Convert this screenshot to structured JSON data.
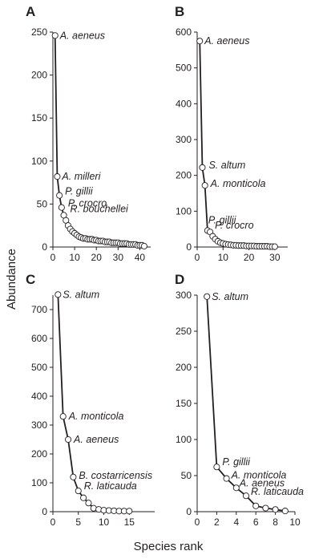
{
  "figure": {
    "ylabel": "Abundance",
    "xlabel": "Species rank"
  },
  "chart_data": [
    {
      "panel": "A",
      "type": "line",
      "xlim": [
        0,
        45
      ],
      "ylim": [
        0,
        250
      ],
      "xticks": [
        0,
        10,
        20,
        30,
        40
      ],
      "yticks": [
        0,
        50,
        100,
        150,
        200,
        250
      ],
      "x": [
        1,
        2,
        3,
        4,
        5,
        6,
        7,
        8,
        9,
        10,
        11,
        12,
        13,
        14,
        15,
        16,
        17,
        18,
        19,
        20,
        21,
        22,
        23,
        24,
        25,
        26,
        27,
        28,
        29,
        30,
        31,
        32,
        33,
        34,
        35,
        36,
        37,
        38,
        39,
        40,
        41,
        42
      ],
      "y": [
        246,
        82,
        60,
        46,
        37,
        31,
        25,
        21,
        18,
        16,
        14,
        12,
        11,
        10,
        10,
        9,
        9,
        9,
        8,
        8,
        7,
        7,
        7,
        6,
        6,
        6,
        5,
        5,
        5,
        5,
        4,
        4,
        4,
        4,
        3,
        3,
        3,
        3,
        2,
        2,
        2,
        1
      ],
      "annotations": [
        {
          "label": "A. aeneus",
          "rank": 1
        },
        {
          "label": "A. milleri",
          "rank": 2
        },
        {
          "label": "P. gillii",
          "rank": 3
        },
        {
          "label": "P. crocro",
          "rank": 4
        },
        {
          "label": "R. bouchellei",
          "rank": 5
        }
      ]
    },
    {
      "panel": "B",
      "type": "line",
      "xlim": [
        0,
        35
      ],
      "ylim": [
        0,
        600
      ],
      "xticks": [
        0,
        10,
        20,
        30
      ],
      "yticks": [
        0,
        100,
        200,
        300,
        400,
        500,
        600
      ],
      "x": [
        1,
        2,
        3,
        4,
        5,
        6,
        7,
        8,
        9,
        10,
        11,
        12,
        13,
        14,
        15,
        16,
        17,
        18,
        19,
        20,
        21,
        22,
        23,
        24,
        25,
        26,
        27,
        28,
        29,
        30
      ],
      "y": [
        575,
        222,
        172,
        46,
        42,
        30,
        22,
        16,
        12,
        10,
        8,
        7,
        6,
        5,
        5,
        4,
        4,
        4,
        3,
        3,
        3,
        3,
        2,
        2,
        2,
        2,
        2,
        1,
        1,
        1
      ],
      "annotations": [
        {
          "label": "A. aeneus",
          "rank": 1
        },
        {
          "label": "S. altum",
          "rank": 2
        },
        {
          "label": "A. monticola",
          "rank": 3
        },
        {
          "label": "P. gillii",
          "rank": 4
        },
        {
          "label": "P. crocro",
          "rank": 5
        }
      ]
    },
    {
      "panel": "C",
      "type": "line",
      "xlim": [
        0,
        20
      ],
      "ylim": [
        0,
        750
      ],
      "xticks": [
        0,
        5,
        10,
        15
      ],
      "yticks": [
        0,
        100,
        200,
        300,
        400,
        500,
        600,
        700
      ],
      "x": [
        1,
        2,
        3,
        4,
        5,
        6,
        7,
        8,
        9,
        10,
        11,
        12,
        13,
        14,
        15
      ],
      "y": [
        752,
        330,
        250,
        120,
        72,
        48,
        30,
        12,
        8,
        5,
        4,
        3,
        2,
        2,
        2
      ],
      "annotations": [
        {
          "label": "S. altum",
          "rank": 1
        },
        {
          "label": "A. monticola",
          "rank": 2
        },
        {
          "label": "A. aeneus",
          "rank": 3
        },
        {
          "label": "B. costarricensis",
          "rank": 4
        },
        {
          "label": "R. laticauda",
          "rank": 5
        }
      ]
    },
    {
      "panel": "D",
      "type": "line",
      "xlim": [
        0,
        10
      ],
      "ylim": [
        0,
        300
      ],
      "xticks": [
        0,
        2,
        4,
        6,
        8,
        10
      ],
      "yticks": [
        0,
        50,
        100,
        150,
        200,
        250,
        300
      ],
      "x": [
        1,
        2,
        3,
        4,
        5,
        6,
        7,
        8,
        9
      ],
      "y": [
        298,
        62,
        46,
        33,
        22,
        8,
        5,
        3,
        1
      ],
      "annotations": [
        {
          "label": "S. altum",
          "rank": 1
        },
        {
          "label": "P. gillii",
          "rank": 2
        },
        {
          "label": "A. monticola",
          "rank": 3
        },
        {
          "label": "A. aeneus",
          "rank": 4
        },
        {
          "label": "R. laticauda",
          "rank": 5
        }
      ]
    }
  ]
}
